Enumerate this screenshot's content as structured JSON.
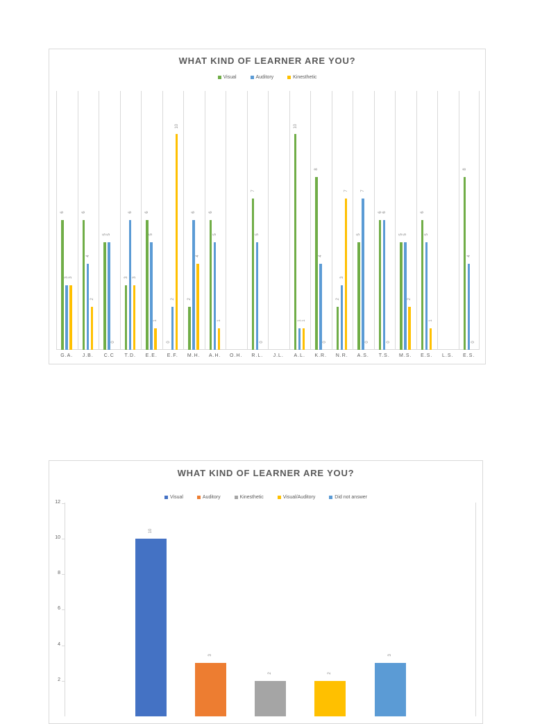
{
  "chart_data": [
    {
      "type": "bar",
      "title": "WHAT KIND OF LEARNER ARE YOU?",
      "xlabel": "",
      "ylabel": "",
      "ylim": [
        0,
        12
      ],
      "grid": "vertical category separators",
      "legend_position": "top",
      "categories": [
        "G.A.",
        "J.B.",
        "C.C",
        "T.D.",
        "E.E.",
        "E.F.",
        "M.H.",
        "A.H.",
        "O.H.",
        "R.L.",
        "J.L.",
        "A.L.",
        "K.R.",
        "N.R.",
        "A.S.",
        "T.S.",
        "M.S.",
        "E.S.",
        "L.S.",
        "E.S."
      ],
      "series": [
        {
          "name": "Visual",
          "color": "#70AD47",
          "values": [
            6,
            6,
            5,
            3,
            6,
            0,
            2,
            6,
            null,
            7,
            null,
            10,
            8,
            2,
            5,
            6,
            5,
            6,
            null,
            8
          ]
        },
        {
          "name": "Auditory",
          "color": "#5B9BD5",
          "values": [
            3,
            4,
            5,
            6,
            5,
            2,
            6,
            5,
            null,
            5,
            null,
            1,
            4,
            3,
            7,
            6,
            5,
            5,
            null,
            4
          ]
        },
        {
          "name": "Kinesthetic",
          "color": "#FFC000",
          "values": [
            3,
            2,
            0,
            3,
            1,
            10,
            4,
            1,
            null,
            0,
            null,
            1,
            0,
            7,
            0,
            0,
            2,
            1,
            null,
            0
          ]
        }
      ]
    },
    {
      "type": "bar",
      "title": "WHAT KIND OF LEARNER ARE YOU?",
      "xlabel": "",
      "ylabel": "",
      "ylim": [
        0,
        12
      ],
      "yticks": [
        12,
        10,
        8,
        6,
        4,
        2
      ],
      "legend_position": "top",
      "categories": [
        "Visual",
        "Auditory",
        "Kinesthetic",
        "Visual/Auditory",
        "Did not answer"
      ],
      "colors": [
        "#4472C4",
        "#ED7D31",
        "#A5A5A5",
        "#FFC000",
        "#5B9BD5"
      ],
      "values": [
        10,
        3,
        2,
        2,
        3
      ]
    }
  ],
  "chart1": {
    "title": "WHAT KIND OF LEARNER ARE YOU?",
    "legend": [
      {
        "label": "Visual",
        "color": "#70AD47"
      },
      {
        "label": "Auditory",
        "color": "#5B9BD5"
      },
      {
        "label": "Kinesthetic",
        "color": "#FFC000"
      }
    ]
  },
  "chart2": {
    "title": "WHAT KIND OF LEARNER ARE YOU?",
    "legend": [
      {
        "label": "Visual",
        "color": "#4472C4"
      },
      {
        "label": "Auditory",
        "color": "#ED7D31"
      },
      {
        "label": "Kinesthetic",
        "color": "#A5A5A5"
      },
      {
        "label": "Visual/Auditory",
        "color": "#FFC000"
      },
      {
        "label": "Did not answer",
        "color": "#5B9BD5"
      }
    ]
  }
}
